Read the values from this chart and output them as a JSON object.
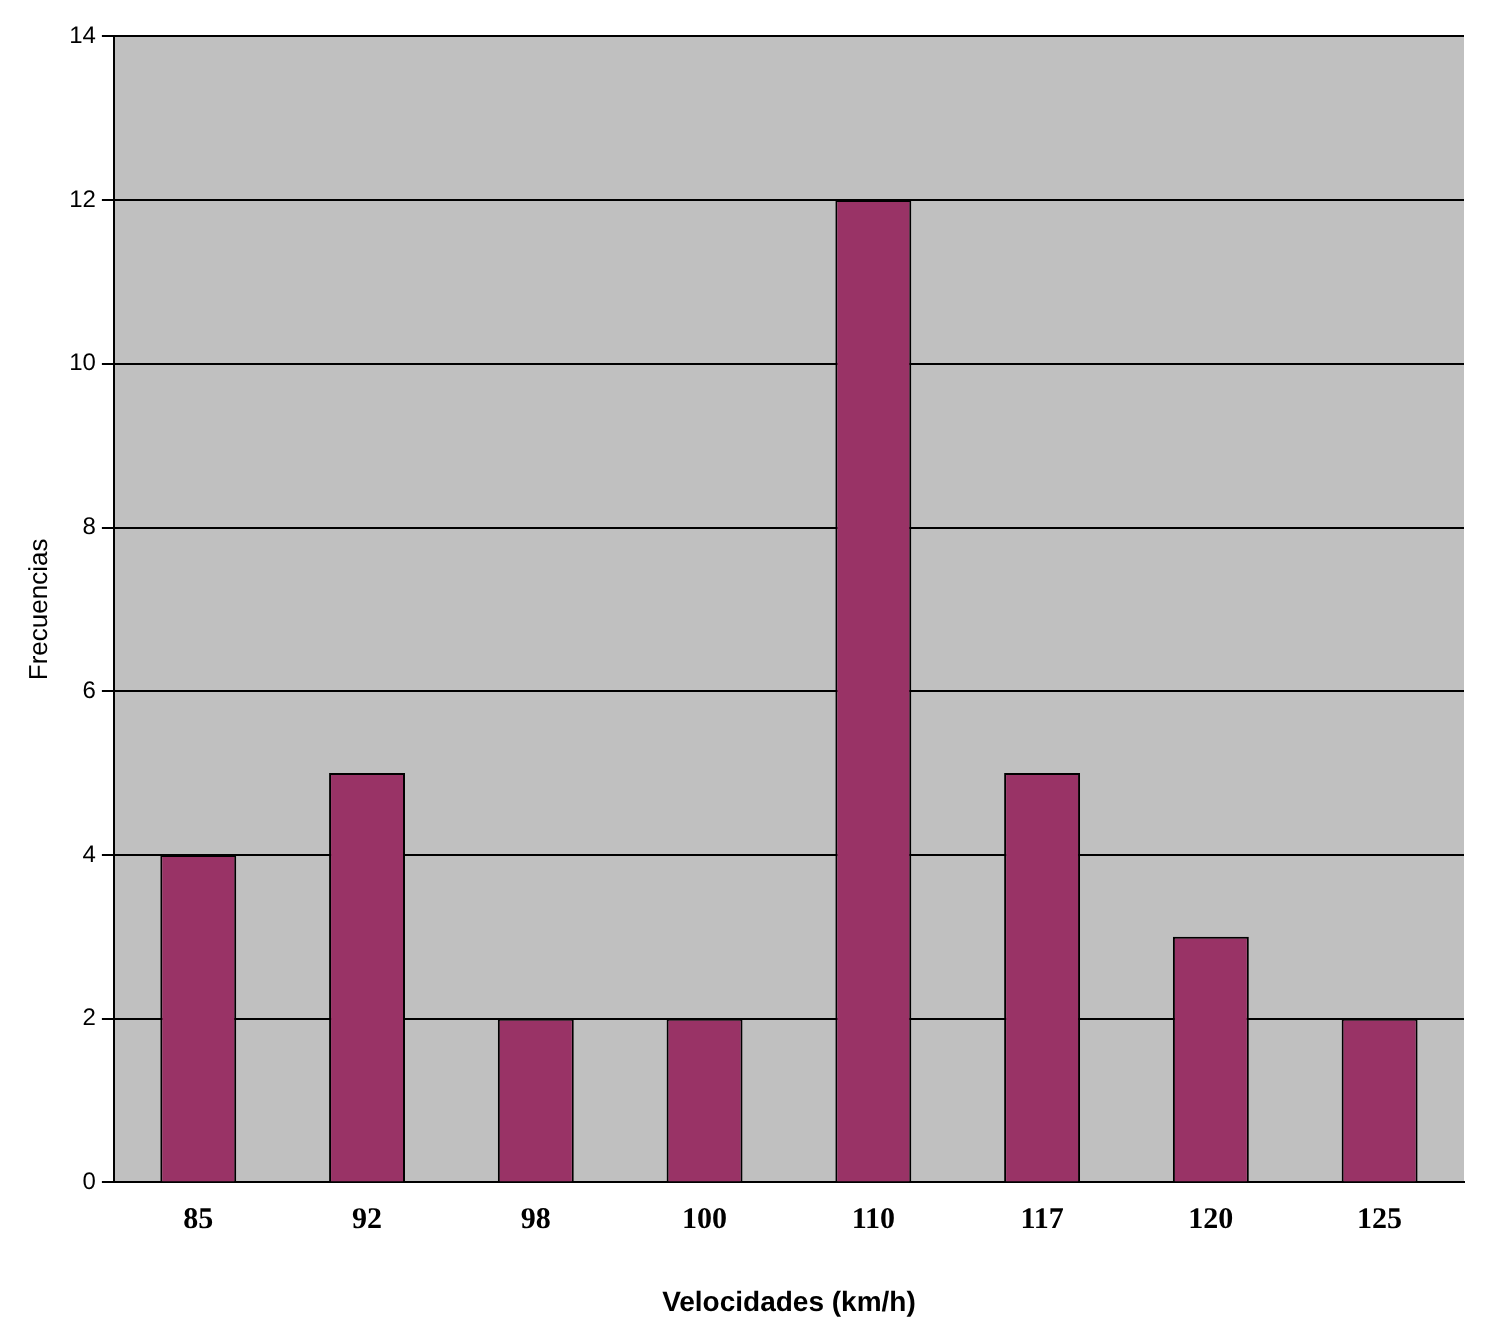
{
  "chart_data": {
    "type": "bar",
    "xlabel": "Velocidades (km/h)",
    "ylabel": "Frecuencias",
    "categories": [
      "85",
      "92",
      "98",
      "100",
      "110",
      "117",
      "120",
      "125"
    ],
    "values": [
      4,
      5,
      2,
      2,
      12,
      5,
      3,
      2
    ],
    "color": "#993366",
    "ylim": [
      0,
      14
    ],
    "yticks": [
      0,
      2,
      4,
      6,
      8,
      10,
      12,
      14
    ],
    "grid": "y",
    "legend": false
  }
}
